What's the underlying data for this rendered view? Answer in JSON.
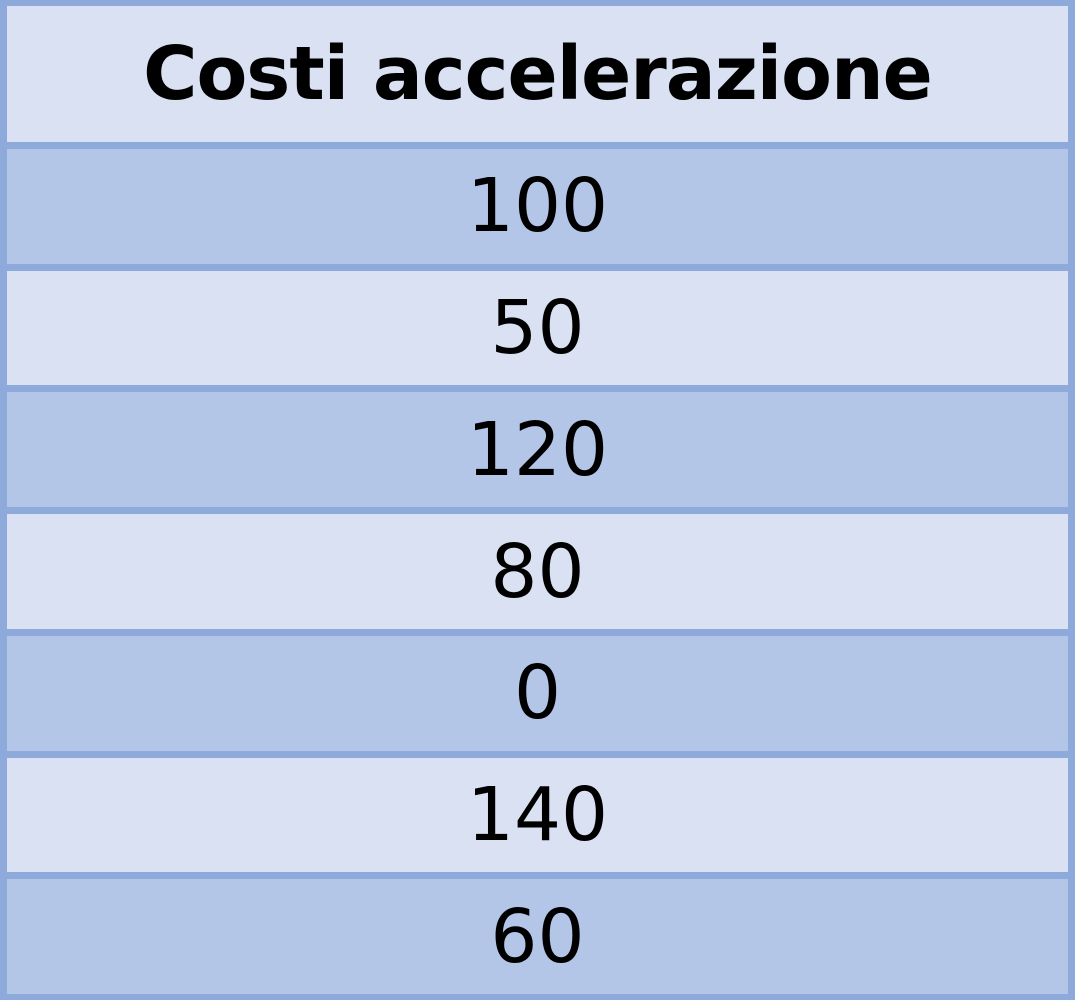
{
  "table": {
    "header": "Costi accelerazione",
    "rows": [
      "100",
      "50",
      "120",
      "80",
      "0",
      "140",
      "60"
    ]
  },
  "colors": {
    "border": "#8eaadb",
    "header_bg": "#d9e1f3",
    "row_dark": "#b4c6e7",
    "row_light": "#d9e1f3",
    "text": "#000000"
  }
}
